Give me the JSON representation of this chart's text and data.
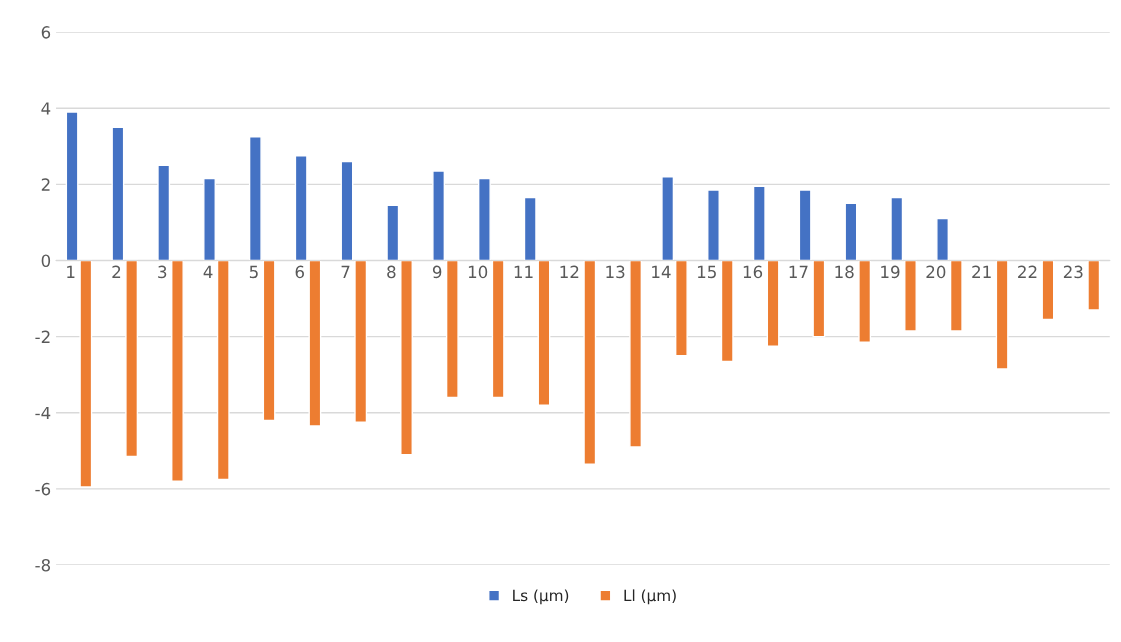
{
  "chart_data": {
    "type": "bar",
    "categories": [
      "1",
      "2",
      "3",
      "4",
      "5",
      "6",
      "7",
      "8",
      "9",
      "10",
      "11",
      "12",
      "13",
      "14",
      "15",
      "16",
      "17",
      "18",
      "19",
      "20",
      "21",
      "22",
      "23"
    ],
    "series": [
      {
        "name": "Ls (µm)",
        "color": "#4472c4",
        "values": [
          3.9,
          3.5,
          2.5,
          2.15,
          3.25,
          2.75,
          2.6,
          1.45,
          2.35,
          2.15,
          1.65,
          null,
          null,
          2.2,
          1.85,
          1.95,
          1.85,
          1.5,
          1.65,
          1.1,
          null,
          null,
          null
        ]
      },
      {
        "name": "Ll (µm)",
        "color": "#ed7d31",
        "values": [
          -5.95,
          -5.15,
          -5.8,
          -5.75,
          -4.2,
          -4.35,
          -4.25,
          -5.1,
          -3.6,
          -3.6,
          -3.8,
          -5.35,
          -4.9,
          -2.5,
          -2.65,
          -2.25,
          -2.0,
          -2.15,
          -1.85,
          -1.85,
          -2.85,
          -1.55,
          -1.3
        ]
      }
    ],
    "ylim": [
      -8,
      6
    ],
    "yticks": [
      -8,
      -6,
      -4,
      -2,
      0,
      2,
      4,
      6
    ],
    "grid": "y",
    "legend": "bottom"
  }
}
